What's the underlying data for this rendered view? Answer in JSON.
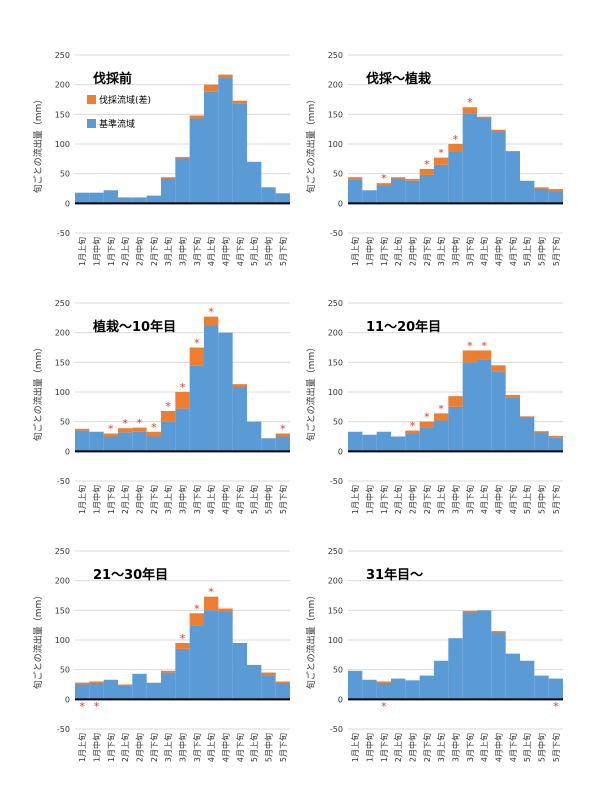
{
  "colors": {
    "base": "#5b9bd5",
    "diff": "#ed7d31",
    "marker": "#e8322a"
  },
  "marker_symbol": "*",
  "legend": [
    {
      "key": "diff",
      "label": "伐採流域(差)"
    },
    {
      "key": "base",
      "label": "基準流域"
    }
  ],
  "chart_data": [
    {
      "type": "bar",
      "title": "伐採前",
      "ylabel": "旬ごとの流出量（mm）",
      "ylim": [
        -50,
        250
      ],
      "yticks": [
        -50,
        0,
        50,
        100,
        150,
        200,
        250
      ],
      "categories": [
        "1月上旬",
        "1月中旬",
        "1月下旬",
        "2月上旬",
        "2月中旬",
        "2月下旬",
        "3月上旬",
        "3月中旬",
        "3月下旬",
        "4月上旬",
        "4月中旬",
        "4月下旬",
        "5月上旬",
        "5月中旬",
        "5月下旬"
      ],
      "series": [
        {
          "name": "基準流域",
          "values": [
            18,
            18,
            22,
            10,
            10,
            13,
            42,
            77,
            143,
            188,
            212,
            168,
            70,
            27,
            17
          ]
        },
        {
          "name": "伐採流域(差)",
          "values": [
            0,
            0,
            0,
            0,
            0,
            0,
            2,
            1,
            5,
            12,
            5,
            5,
            0,
            0,
            0
          ]
        }
      ],
      "markers": {
        "top": [],
        "bottom": []
      },
      "show_legend": true
    },
    {
      "type": "bar",
      "title": "伐採～植栽",
      "ylabel": "旬ごとの流出量（mm）",
      "ylim": [
        -50,
        250
      ],
      "yticks": [
        -50,
        0,
        50,
        100,
        150,
        200,
        250
      ],
      "categories": [
        "1月上旬",
        "1月中旬",
        "1月下旬",
        "2月上旬",
        "2月中旬",
        "2月下旬",
        "3月上旬",
        "3月中旬",
        "3月下旬",
        "4月上旬",
        "4月中旬",
        "4月下旬",
        "5月上旬",
        "5月中旬",
        "5月下旬"
      ],
      "series": [
        {
          "name": "基準流域",
          "values": [
            40,
            22,
            30,
            42,
            38,
            48,
            65,
            88,
            152,
            145,
            122,
            88,
            38,
            25,
            20
          ]
        },
        {
          "name": "伐採流域(差)",
          "values": [
            4,
            0,
            4,
            2,
            3,
            10,
            12,
            12,
            10,
            1,
            2,
            0,
            0,
            2,
            4
          ]
        }
      ],
      "markers": {
        "top": [
          2,
          5,
          6,
          7,
          8
        ],
        "bottom": []
      },
      "show_legend": false
    },
    {
      "type": "bar",
      "title": "植栽～10年目",
      "ylabel": "旬ごとの流出量（mm）",
      "ylim": [
        -50,
        250
      ],
      "yticks": [
        -50,
        0,
        50,
        100,
        150,
        200,
        250
      ],
      "categories": [
        "1月上旬",
        "1月中旬",
        "1月下旬",
        "2月上旬",
        "2月中旬",
        "2月下旬",
        "3月上旬",
        "3月中旬",
        "3月下旬",
        "4月上旬",
        "4月中旬",
        "4月下旬",
        "5月上旬",
        "5月中旬",
        "5月下旬"
      ],
      "series": [
        {
          "name": "基準流域",
          "values": [
            35,
            33,
            25,
            32,
            33,
            25,
            50,
            72,
            145,
            212,
            200,
            113,
            50,
            22,
            25
          ]
        },
        {
          "name": "伐採流域(差)",
          "values": [
            3,
            0,
            5,
            7,
            7,
            8,
            18,
            28,
            30,
            15,
            0,
            -5,
            0,
            0,
            5
          ]
        }
      ],
      "markers": {
        "top": [
          2,
          3,
          4,
          5,
          6,
          7,
          8,
          9,
          14
        ],
        "bottom": []
      },
      "show_legend": false
    },
    {
      "type": "bar",
      "title": "11～20年目",
      "ylabel": "旬ごとの流出量（mm）",
      "ylim": [
        -50,
        250
      ],
      "yticks": [
        -50,
        0,
        50,
        100,
        150,
        200,
        250
      ],
      "categories": [
        "1月上旬",
        "1月中旬",
        "1月下旬",
        "2月上旬",
        "2月中旬",
        "2月下旬",
        "3月上旬",
        "3月中旬",
        "3月下旬",
        "4月上旬",
        "4月中旬",
        "4月下旬",
        "5月上旬",
        "5月中旬",
        "5月下旬"
      ],
      "series": [
        {
          "name": "基準流域",
          "values": [
            33,
            28,
            33,
            25,
            30,
            40,
            52,
            75,
            150,
            155,
            135,
            90,
            57,
            32,
            23
          ]
        },
        {
          "name": "伐採流域(差)",
          "values": [
            0,
            0,
            0,
            0,
            5,
            10,
            12,
            18,
            20,
            15,
            10,
            5,
            2,
            2,
            3
          ]
        }
      ],
      "markers": {
        "top": [
          4,
          5,
          6,
          8,
          9
        ],
        "bottom": []
      },
      "show_legend": false
    },
    {
      "type": "bar",
      "title": "21～30年目",
      "ylabel": "旬ごとの流出量（mm）",
      "ylim": [
        -50,
        250
      ],
      "yticks": [
        -50,
        0,
        50,
        100,
        150,
        200,
        250
      ],
      "categories": [
        "1月上旬",
        "1月中旬",
        "1月下旬",
        "2月上旬",
        "2月中旬",
        "2月下旬",
        "3月上旬",
        "3月中旬",
        "3月下旬",
        "4月上旬",
        "4月中旬",
        "4月下旬",
        "5月上旬",
        "5月中旬",
        "5月下旬"
      ],
      "series": [
        {
          "name": "基準流域",
          "values": [
            28,
            30,
            33,
            25,
            43,
            28,
            45,
            85,
            125,
            150,
            148,
            95,
            58,
            45,
            28
          ]
        },
        {
          "name": "伐採流域(差)",
          "values": [
            -3,
            -2,
            0,
            -2,
            0,
            0,
            3,
            10,
            20,
            23,
            5,
            0,
            0,
            -5,
            2
          ]
        }
      ],
      "markers": {
        "top": [
          7,
          8,
          9
        ],
        "bottom": [
          0,
          1
        ]
      },
      "show_legend": false
    },
    {
      "type": "bar",
      "title": "31年目～",
      "ylabel": "旬ごとの流出量（mm）",
      "ylim": [
        -50,
        250
      ],
      "yticks": [
        -50,
        0,
        50,
        100,
        150,
        200,
        250
      ],
      "categories": [
        "1月上旬",
        "1月中旬",
        "1月下旬",
        "2月上旬",
        "2月中旬",
        "2月下旬",
        "3月上旬",
        "3月中旬",
        "3月下旬",
        "4月上旬",
        "4月中旬",
        "4月下旬",
        "5月上旬",
        "5月中旬",
        "5月下旬"
      ],
      "series": [
        {
          "name": "基準流域",
          "values": [
            48,
            33,
            30,
            35,
            32,
            40,
            65,
            103,
            147,
            150,
            113,
            77,
            65,
            40,
            35
          ]
        },
        {
          "name": "伐採流域(差)",
          "values": [
            0,
            0,
            -2,
            0,
            0,
            0,
            0,
            0,
            2,
            0,
            2,
            0,
            0,
            0,
            0
          ]
        }
      ],
      "markers": {
        "top": [],
        "bottom": [
          2,
          14
        ]
      },
      "show_legend": false
    }
  ]
}
